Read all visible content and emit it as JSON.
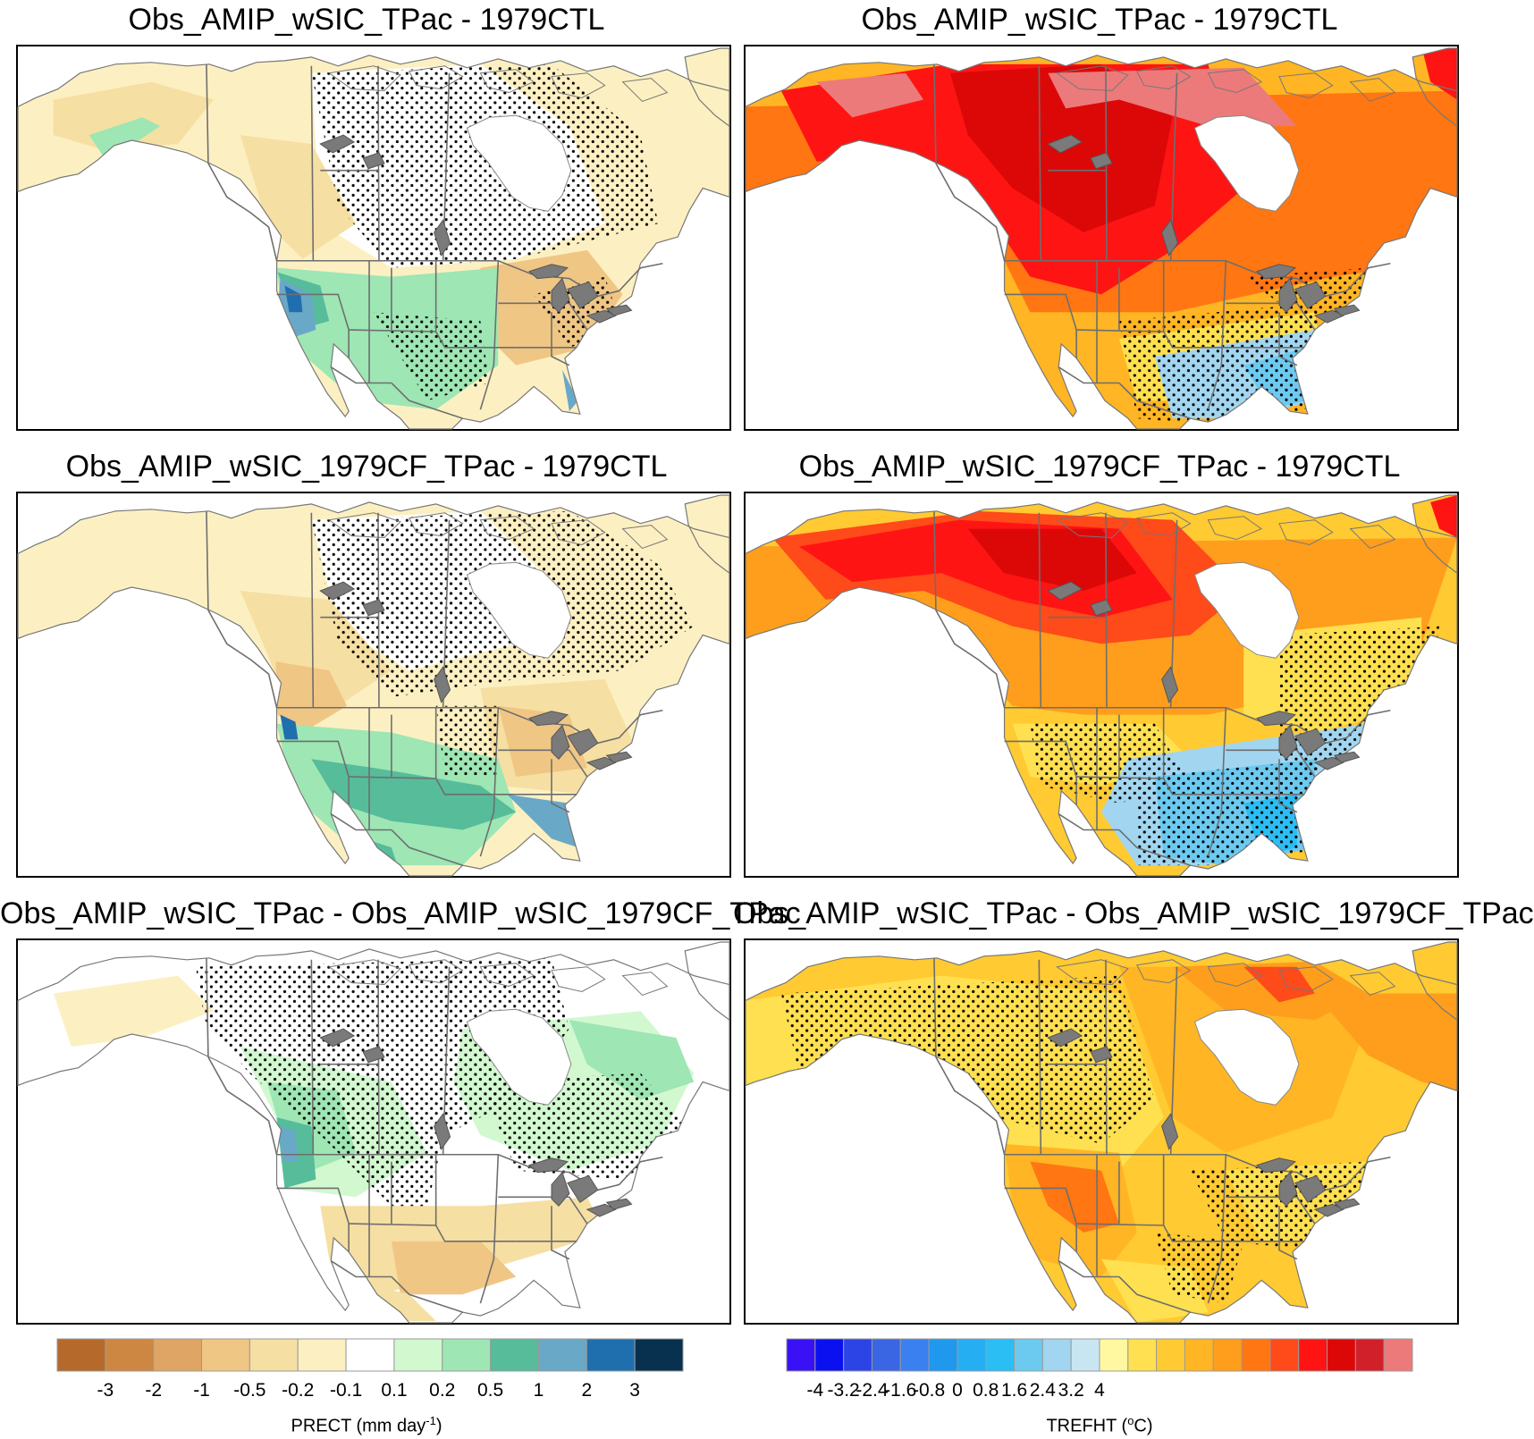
{
  "figure": {
    "panels": [
      {
        "id": "p1",
        "title": "Obs_AMIP_wSIC_TPac - 1979CTL",
        "variable": "PRECT",
        "column": "left",
        "row": 1
      },
      {
        "id": "p2",
        "title": "Obs_AMIP_wSIC_TPac - 1979CTL",
        "variable": "TREFHT",
        "column": "right",
        "row": 1
      },
      {
        "id": "p3",
        "title": "Obs_AMIP_wSIC_1979CF_TPac - 1979CTL",
        "variable": "PRECT",
        "column": "left",
        "row": 2
      },
      {
        "id": "p4",
        "title": "Obs_AMIP_wSIC_1979CF_TPac - 1979CTL",
        "variable": "TREFHT",
        "column": "right",
        "row": 2
      },
      {
        "id": "p5",
        "title": "Obs_AMIP_wSIC_TPac - Obs_AMIP_wSIC_1979CF_TPac",
        "variable": "PRECT",
        "column": "left",
        "row": 3
      },
      {
        "id": "p6",
        "title": "Obs_AMIP_wSIC_TPac - Obs_AMIP_wSIC_1979CF_TPac",
        "variable": "TREFHT",
        "column": "right",
        "row": 3
      }
    ]
  },
  "colorbars": {
    "prect": {
      "label_main": "PRECT (mm day",
      "label_sup": "-1",
      "label_end": ")",
      "colors": [
        "#b56a2b",
        "#ce8743",
        "#dfa565",
        "#f0c684",
        "#f6dfa2",
        "#fcf0c2",
        "#ffffff",
        "#d2f8d0",
        "#9ee6b4",
        "#56bc9a",
        "#6aa8c8",
        "#1f6fae",
        "#08304f"
      ],
      "ticks": [
        "-3",
        "-2",
        "-1",
        "-0.5",
        "-0.2",
        "-0.1",
        "0.1",
        "0.2",
        "0.5",
        "1",
        "2",
        "3"
      ]
    },
    "trefht": {
      "label_main": "TREFHT (",
      "label_sup": "o",
      "label_end": "C)",
      "colors": [
        "#3a10f5",
        "#0a10f0",
        "#2c44e6",
        "#3a66e3",
        "#3a80f0",
        "#1f98ee",
        "#26aef3",
        "#2abef5",
        "#6ccaf0",
        "#a2d6f0",
        "#c8e6f2",
        "#fff8a0",
        "#ffe050",
        "#ffca32",
        "#ffb524",
        "#ff9e1c",
        "#ff7612",
        "#ff4a1a",
        "#ff1414",
        "#dc0808",
        "#d2202a",
        "#ec7a7a"
      ],
      "ticks": [
        "-4",
        "-3.2",
        "-2.4",
        "-1.6",
        "-0.8",
        "0",
        "0.8",
        "1.6",
        "2.4",
        "3.2",
        "4"
      ]
    }
  }
}
